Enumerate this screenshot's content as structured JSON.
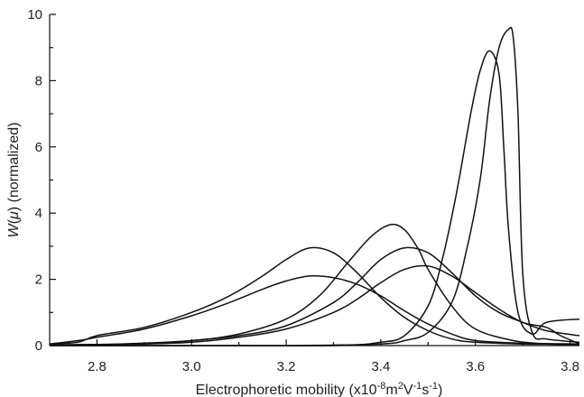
{
  "chart_data": {
    "type": "line",
    "xlabel_main": "Electrophoretic mobility (x10",
    "xlabel_sup1": "-8",
    "xlabel_m": "m",
    "xlabel_sup2": "2",
    "xlabel_V": "V",
    "xlabel_sup3": "-1",
    "xlabel_s": "s",
    "xlabel_sup4": "-1",
    "xlabel_close": ")",
    "ylabel_var": "W",
    "ylabel_paren_open": "(",
    "ylabel_mu": "μ",
    "ylabel_rest": ") (normalized)",
    "xlim": [
      2.7,
      3.82
    ],
    "ylim": [
      0,
      10
    ],
    "xticks": [
      "2.8",
      "3.0",
      "3.2",
      "3.4",
      "3.6",
      "3.8"
    ],
    "yticks": [
      "0",
      "2",
      "4",
      "6",
      "8",
      "10"
    ],
    "series": [
      {
        "x": [
          2.7,
          2.76,
          2.8,
          2.9,
          3.0,
          3.08,
          3.15,
          3.2,
          3.25,
          3.3,
          3.35,
          3.4,
          3.45,
          3.5,
          3.55,
          3.6,
          3.7,
          3.82
        ],
        "y": [
          0.05,
          0.1,
          0.3,
          0.55,
          1.0,
          1.5,
          2.1,
          2.6,
          2.95,
          2.8,
          2.2,
          1.45,
          0.85,
          0.45,
          0.2,
          0.1,
          0.05,
          0.05
        ]
      },
      {
        "x": [
          2.7,
          2.76,
          2.8,
          2.9,
          3.0,
          3.08,
          3.15,
          3.2,
          3.25,
          3.3,
          3.35,
          3.4,
          3.45,
          3.5,
          3.55,
          3.6,
          3.7,
          3.82
        ],
        "y": [
          0.05,
          0.15,
          0.25,
          0.5,
          0.9,
          1.3,
          1.7,
          1.95,
          2.1,
          2.05,
          1.85,
          1.5,
          1.05,
          0.65,
          0.35,
          0.15,
          0.07,
          0.05
        ]
      },
      {
        "x": [
          2.7,
          2.85,
          3.0,
          3.1,
          3.2,
          3.27,
          3.33,
          3.38,
          3.42,
          3.45,
          3.48,
          3.5,
          3.55,
          3.6,
          3.68,
          3.75,
          3.82
        ],
        "y": [
          0.02,
          0.05,
          0.15,
          0.35,
          0.8,
          1.5,
          2.5,
          3.3,
          3.65,
          3.5,
          2.9,
          2.3,
          1.2,
          0.5,
          0.15,
          0.05,
          0.03
        ]
      },
      {
        "x": [
          2.7,
          2.9,
          3.0,
          3.1,
          3.2,
          3.3,
          3.35,
          3.4,
          3.45,
          3.5,
          3.55,
          3.6,
          3.65,
          3.7,
          3.75,
          3.82
        ],
        "y": [
          0.02,
          0.05,
          0.15,
          0.3,
          0.6,
          1.3,
          1.9,
          2.6,
          2.95,
          2.8,
          2.2,
          1.5,
          1.0,
          0.7,
          0.45,
          0.3
        ]
      },
      {
        "x": [
          2.7,
          2.9,
          3.0,
          3.1,
          3.2,
          3.3,
          3.35,
          3.4,
          3.45,
          3.5,
          3.55,
          3.6,
          3.65,
          3.7,
          3.75,
          3.78,
          3.82
        ],
        "y": [
          0.02,
          0.05,
          0.1,
          0.25,
          0.5,
          1.0,
          1.4,
          1.9,
          2.3,
          2.4,
          2.1,
          1.6,
          1.1,
          0.7,
          0.55,
          0.3,
          0.05
        ]
      },
      {
        "x": [
          2.7,
          3.0,
          3.3,
          3.4,
          3.45,
          3.5,
          3.53,
          3.56,
          3.59,
          3.61,
          3.63,
          3.65,
          3.66,
          3.67,
          3.69,
          3.72,
          3.75,
          3.82
        ],
        "y": [
          0.0,
          0.0,
          0.0,
          0.1,
          0.3,
          1.2,
          2.6,
          4.6,
          7.0,
          8.3,
          8.9,
          8.2,
          6.0,
          3.5,
          1.0,
          0.35,
          0.7,
          0.8
        ]
      },
      {
        "x": [
          2.7,
          3.2,
          3.4,
          3.45,
          3.5,
          3.55,
          3.58,
          3.61,
          3.63,
          3.65,
          3.67,
          3.68,
          3.69,
          3.7,
          3.72,
          3.75,
          3.82
        ],
        "y": [
          0.0,
          0.0,
          0.05,
          0.15,
          0.4,
          1.3,
          2.8,
          5.0,
          7.4,
          9.0,
          9.55,
          9.3,
          7.0,
          2.2,
          0.4,
          0.2,
          0.1
        ]
      }
    ]
  }
}
